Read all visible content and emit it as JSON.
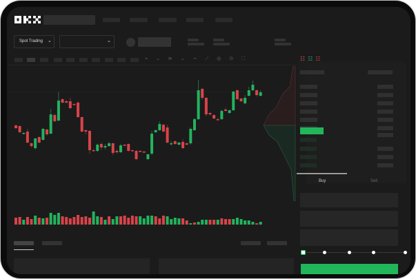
{
  "header": {
    "logo": "OKX",
    "nav_items": [
      "",
      "",
      "",
      "",
      ""
    ]
  },
  "market_bar": {
    "mode_button": "Spot Trading",
    "pair_dropdown": "",
    "chevron": "chevron-down-icon"
  },
  "toolbar": {
    "icons": [
      "candle-type-icon",
      "indicator-icon",
      "line-tool-icon",
      "ruler-icon",
      "camera-icon",
      "settings-icon",
      "fullscreen-icon"
    ]
  },
  "order_panel": {
    "layout_icons": [
      "orderbook-both-icon",
      "orderbook-bids-icon",
      "orderbook-asks-icon"
    ],
    "tabs": [
      {
        "label": "Buy",
        "active": true
      },
      {
        "label": "Sell",
        "active": false
      }
    ],
    "slider_percent": 0,
    "slider_stops": 5,
    "submit_label": ""
  },
  "colors": {
    "up": "#22b35e",
    "down": "#d9434a",
    "background": "#1b1b1b",
    "accent": "#22b65a"
  },
  "chart_data": {
    "type": "candlestick",
    "candles": [
      [
        69,
        70,
        64,
        65
      ],
      [
        68,
        69,
        58,
        59
      ],
      [
        57,
        59,
        56,
        58
      ],
      [
        60,
        64,
        43,
        44
      ],
      [
        43,
        44,
        37,
        39
      ],
      [
        36,
        51,
        34,
        50
      ],
      [
        52,
        53,
        43,
        44
      ],
      [
        48,
        65,
        47,
        64
      ],
      [
        63,
        64,
        54,
        56
      ],
      [
        57,
        93,
        56,
        85
      ],
      [
        84,
        86,
        74,
        75
      ],
      [
        76,
        118,
        75,
        105
      ],
      [
        107,
        108,
        101,
        102
      ],
      [
        104,
        106,
        101,
        102
      ],
      [
        104,
        109,
        93,
        94
      ],
      [
        100,
        101,
        98,
        99
      ],
      [
        102,
        104,
        80,
        81
      ],
      [
        81,
        82,
        59,
        60
      ],
      [
        62,
        63,
        56,
        60
      ],
      [
        61,
        62,
        28,
        33
      ],
      [
        33,
        35,
        31,
        32
      ],
      [
        32,
        43,
        30,
        41
      ],
      [
        42,
        44,
        33,
        37
      ],
      [
        37,
        42,
        34,
        39
      ],
      [
        39,
        45,
        38,
        43
      ],
      [
        43,
        44,
        26,
        29
      ],
      [
        32,
        34,
        28,
        30
      ],
      [
        30,
        42,
        29,
        40
      ],
      [
        41,
        42,
        39,
        40
      ],
      [
        42,
        43,
        31,
        32
      ],
      [
        33,
        34,
        31,
        32
      ],
      [
        32,
        33,
        19,
        20
      ],
      [
        32,
        33,
        30,
        31
      ],
      [
        31,
        32,
        29,
        30
      ],
      [
        20,
        28,
        19,
        27
      ],
      [
        28,
        61,
        26,
        57
      ],
      [
        59,
        63,
        58,
        62
      ],
      [
        62,
        75,
        61,
        71
      ],
      [
        70,
        71,
        59,
        60
      ],
      [
        66,
        70,
        43,
        44
      ],
      [
        42,
        46,
        40,
        43
      ],
      [
        46,
        47,
        41,
        42
      ],
      [
        41,
        45,
        40,
        44
      ],
      [
        45,
        49,
        35,
        36
      ],
      [
        43,
        44,
        40,
        41
      ],
      [
        43,
        66,
        41,
        64
      ],
      [
        62,
        80,
        61,
        78
      ],
      [
        78,
        135,
        77,
        120
      ],
      [
        122,
        123,
        106,
        109
      ],
      [
        109,
        110,
        82,
        85
      ],
      [
        87,
        88,
        83,
        85
      ],
      [
        84,
        85,
        78,
        79
      ],
      [
        78,
        80,
        76,
        77
      ],
      [
        78,
        92,
        77,
        90
      ],
      [
        92,
        95,
        89,
        90
      ],
      [
        87,
        92,
        86,
        91
      ],
      [
        91,
        119,
        90,
        118
      ],
      [
        120,
        121,
        106,
        107
      ],
      [
        108,
        109,
        103,
        104
      ],
      [
        101,
        113,
        100,
        109
      ],
      [
        112,
        125,
        111,
        120
      ],
      [
        120,
        134,
        119,
        128
      ],
      [
        120,
        121,
        111,
        113
      ],
      [
        112,
        120,
        111,
        117
      ]
    ],
    "volume": [
      10,
      11,
      7,
      11,
      8,
      13,
      10,
      9,
      10,
      17,
      14,
      17,
      12,
      11,
      9,
      11,
      14,
      11,
      12,
      10,
      19,
      12,
      11,
      7,
      12,
      8,
      12,
      12,
      13,
      10,
      13,
      12,
      12,
      9,
      13,
      13,
      12,
      9,
      13,
      12,
      8,
      10,
      9,
      9,
      6,
      2,
      3,
      4,
      7,
      7,
      7,
      7,
      7,
      9,
      8,
      8,
      8,
      10,
      8,
      6,
      6,
      4,
      2,
      4
    ],
    "volume_up": [
      0,
      0,
      1,
      0,
      0,
      1,
      0,
      1,
      0,
      1,
      1,
      1,
      0,
      0,
      0,
      0,
      0,
      0,
      0,
      0,
      1,
      1,
      0,
      1,
      0,
      1,
      1,
      0,
      0,
      0,
      0,
      0,
      1,
      1,
      1,
      1,
      0,
      0,
      0,
      1,
      1,
      1,
      1,
      0,
      0,
      1,
      0,
      1,
      1,
      1,
      0,
      0,
      1,
      0,
      0,
      0,
      1,
      1,
      1,
      1,
      1,
      1,
      0,
      1
    ]
  }
}
